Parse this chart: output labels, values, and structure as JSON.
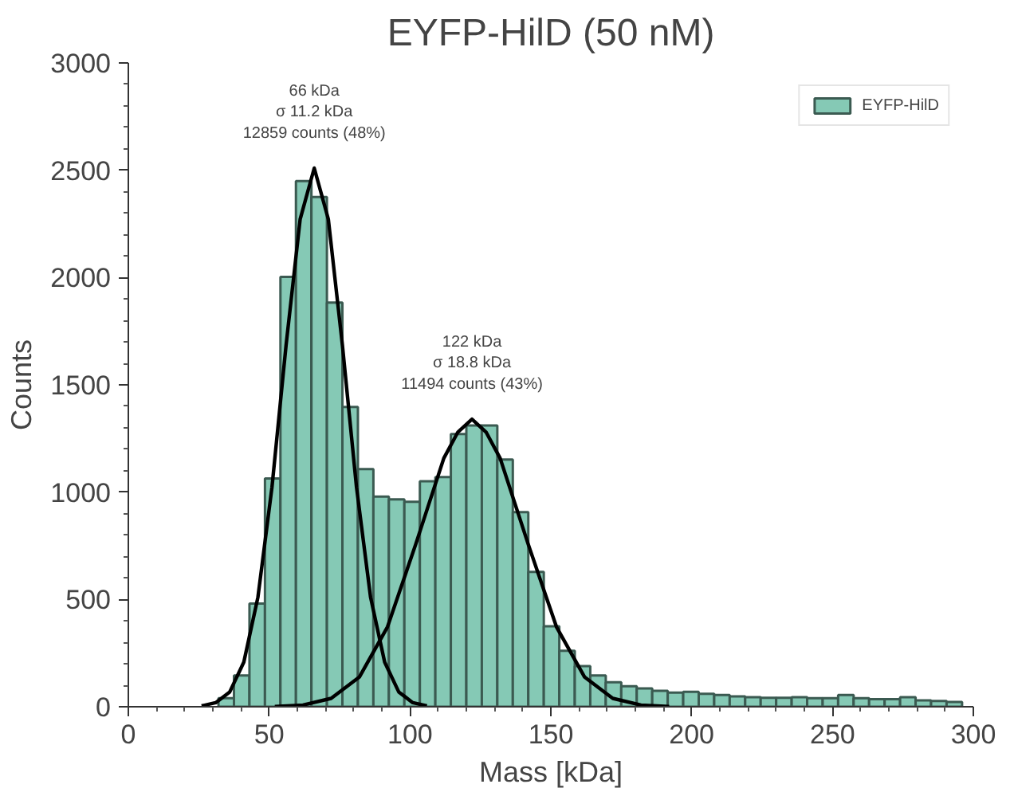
{
  "chart_data": {
    "type": "histogram",
    "title": "EYFP-HilD (50 nM)",
    "xlabel": "Mass [kDa]",
    "ylabel": "Counts",
    "xlim": [
      0,
      300
    ],
    "xticks": [
      0,
      50,
      100,
      150,
      200,
      250,
      300
    ],
    "ylim": [
      0,
      3000
    ],
    "yticks": [
      0,
      500,
      1000,
      1500,
      2000,
      2500,
      3000
    ],
    "grid": false,
    "legend": "top right",
    "annotations": [
      "66 kDa\nσ 11.2 kDa\n12859 counts (48%)",
      "122 kDa\nσ 18.8 kDa\n11494 counts (43%)"
    ],
    "series": [
      {
        "name": "EYFP-HilD",
        "color": "#85c9b5",
        "bins": [
          26.5,
          32,
          37.5,
          43,
          48.5,
          54,
          59.5,
          65,
          70.5,
          76,
          81.5,
          87,
          92.5,
          98,
          103.5,
          109,
          114.5,
          120,
          125.5,
          131,
          136.5,
          142,
          147.5,
          153,
          158.5,
          164,
          169.5,
          175,
          180.5,
          186,
          191.5,
          197,
          202.5,
          208,
          213.5,
          219,
          224.5,
          230,
          235.5,
          241,
          246.5,
          252,
          257.5,
          263,
          268.5,
          274,
          279.5,
          285,
          290.5,
          296
        ],
        "values": [
          null,
          40,
          146,
          481,
          1064,
          2003,
          2450,
          2375,
          1883,
          1397,
          1107,
          979,
          966,
          955,
          1051,
          1070,
          1271,
          1311,
          1311,
          1152,
          907,
          628,
          375,
          261,
          189,
          146,
          114,
          96,
          85,
          74,
          66,
          70,
          60,
          55,
          48,
          45,
          42,
          42,
          45,
          40,
          40,
          55,
          40,
          35,
          35,
          45,
          30,
          27,
          22
        ]
      },
      {
        "type": "line",
        "color": "#000000",
        "x": [
          26,
          31,
          36,
          41,
          46,
          51,
          56,
          61,
          66,
          71,
          76,
          81,
          86,
          91,
          96,
          101,
          106
        ],
        "values": [
          4,
          19,
          69,
          208,
          510,
          1024,
          1685,
          2272,
          2510,
          2272,
          1685,
          1024,
          510,
          208,
          69,
          19,
          4
        ]
      },
      {
        "type": "line",
        "color": "#000000",
        "x": [
          52,
          62,
          72,
          82,
          92,
          102,
          112,
          117,
          122,
          127,
          132,
          142,
          152,
          162,
          172,
          182,
          192
        ],
        "values": [
          1,
          8,
          39,
          138,
          372,
          756,
          1158,
          1280,
          1340,
          1280,
          1158,
          756,
          372,
          138,
          39,
          8,
          1
        ]
      }
    ]
  }
}
